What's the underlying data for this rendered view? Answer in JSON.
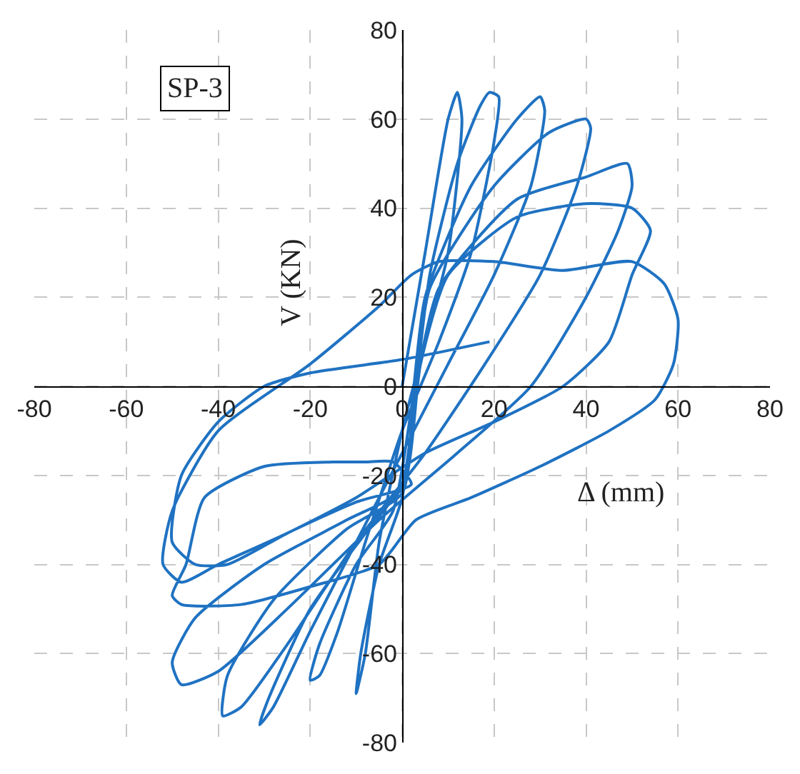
{
  "chart_data": {
    "type": "line",
    "title": "SP-3",
    "xlabel": "Δ (mm)",
    "ylabel": "V (KN)",
    "xlim": [
      -80,
      80
    ],
    "ylim": [
      -80,
      80
    ],
    "xticks": [
      -80,
      -60,
      -40,
      -20,
      0,
      20,
      40,
      60,
      80
    ],
    "yticks": [
      -80,
      -60,
      -40,
      -20,
      0,
      20,
      40,
      60,
      80
    ],
    "grid": true,
    "marker": "none",
    "line_style": "solid",
    "series": [
      {
        "color": "#1f72c2",
        "x": [
          0,
          5,
          10,
          12,
          13,
          10,
          5,
          0,
          -5,
          -8,
          -10,
          -9,
          -5,
          0,
          3,
          6,
          12,
          17,
          19,
          21,
          20,
          15,
          8,
          0,
          -8,
          -14,
          -18,
          -20,
          -18,
          -10,
          -2,
          2,
          5,
          15,
          25,
          30,
          31,
          28,
          20,
          10,
          0,
          -10,
          -20,
          -28,
          -31,
          -29,
          -20,
          -8,
          0,
          3,
          6,
          20,
          32,
          40,
          41,
          38,
          30,
          18,
          5,
          -10,
          -25,
          -35,
          -39,
          -38,
          -28,
          -12,
          0,
          3,
          8,
          25,
          40,
          49,
          50,
          47,
          40,
          28,
          12,
          -5,
          -25,
          -40,
          -48,
          -50,
          -45,
          -30,
          -12,
          0,
          4,
          10,
          25,
          40,
          50,
          54,
          50,
          45,
          35,
          20,
          5,
          -10,
          -25,
          -40,
          -48,
          -52,
          -50,
          -40,
          -20,
          -5,
          2,
          8,
          20,
          35,
          50,
          57,
          60,
          59,
          55,
          45,
          30,
          15,
          3,
          -5,
          -20,
          -35,
          -48,
          -50,
          -47,
          -43,
          -30,
          -15,
          -8,
          -2,
          2,
          -10,
          -25,
          -38,
          -45,
          -50,
          -48,
          -40,
          -30,
          -20,
          0,
          19
        ],
        "values": [
          0,
          30,
          60,
          66,
          60,
          30,
          10,
          -10,
          -35,
          -60,
          -69,
          -60,
          -40,
          -25,
          0,
          25,
          50,
          63,
          66,
          65,
          55,
          30,
          10,
          -10,
          -35,
          -55,
          -65,
          -66,
          -58,
          -40,
          -28,
          -5,
          20,
          45,
          60,
          65,
          62,
          45,
          25,
          5,
          -15,
          -35,
          -55,
          -72,
          -76,
          -70,
          -50,
          -33,
          -22,
          0,
          22,
          45,
          57,
          60,
          58,
          45,
          25,
          5,
          -15,
          -35,
          -58,
          -72,
          -74,
          -65,
          -48,
          -32,
          -24,
          0,
          22,
          42,
          47,
          50,
          45,
          35,
          20,
          0,
          -15,
          -30,
          -50,
          -64,
          -67,
          -62,
          -52,
          -40,
          -30,
          -23,
          5,
          25,
          38,
          41,
          40,
          35,
          25,
          10,
          0,
          -8,
          -15,
          -25,
          -33,
          -40,
          -44,
          -40,
          -28,
          -10,
          5,
          18,
          25,
          28,
          28,
          26,
          28,
          23,
          15,
          5,
          -3,
          -10,
          -18,
          -25,
          -30,
          -40,
          -45,
          -49,
          -49,
          -47,
          -40,
          -25,
          -18,
          -17,
          -17,
          -17,
          -22,
          -26,
          -33,
          -40,
          -40,
          -35,
          -20,
          -8,
          0,
          3,
          6,
          10
        ]
      }
    ]
  }
}
